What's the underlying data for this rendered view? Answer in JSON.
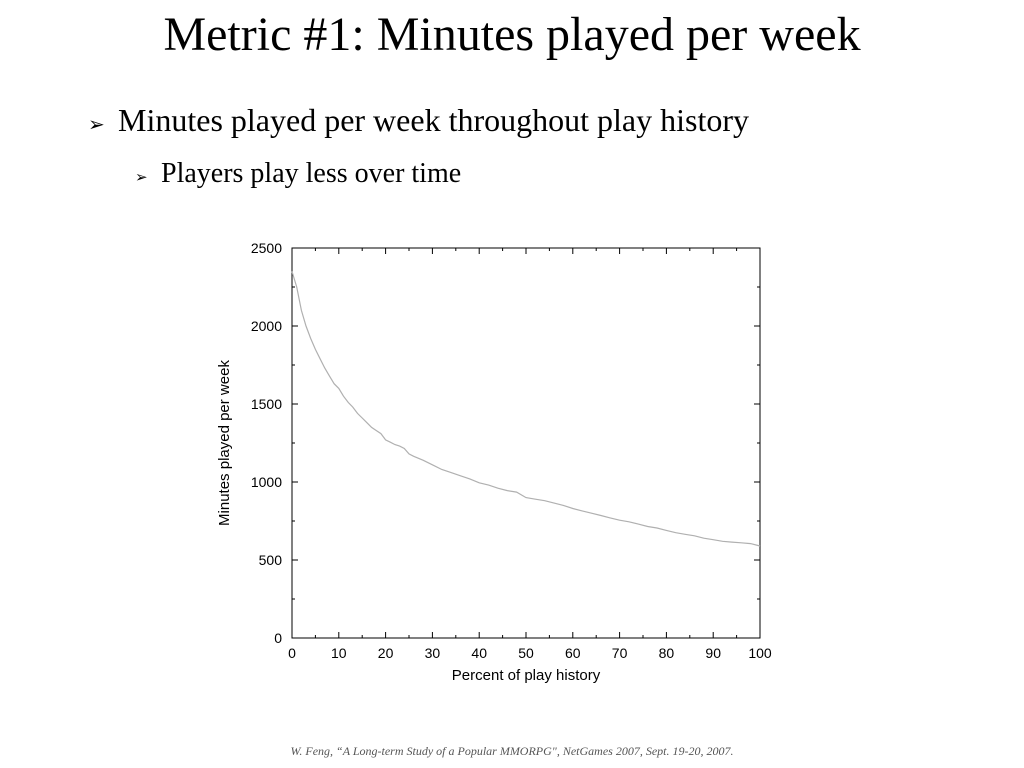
{
  "slide": {
    "title": "Metric #1: Minutes played per week",
    "bullets": [
      {
        "text": "Minutes played per week throughout play history",
        "icon": "arrow-bullet-icon"
      },
      {
        "text": "Players play less over time",
        "icon": "arrow-bullet-icon"
      }
    ],
    "citation": "W. Feng, “A Long-term Study of a Popular MMORPG\", NetGames 2007, Sept. 19-20, 2007."
  },
  "chart_data": {
    "type": "line",
    "title": "",
    "xlabel": "Percent of play history",
    "ylabel": "Minutes played per week",
    "xlim": [
      0,
      100
    ],
    "ylim": [
      0,
      2500
    ],
    "xticks": [
      0,
      10,
      20,
      30,
      40,
      50,
      60,
      70,
      80,
      90,
      100
    ],
    "yticks": [
      0,
      500,
      1000,
      1500,
      2000,
      2500
    ],
    "grid": false,
    "line_color": "#b0b0b0",
    "series": [
      {
        "x": [
          0,
          1,
          2,
          3,
          4,
          5,
          6,
          7,
          8,
          9,
          10,
          11,
          12,
          13,
          14,
          15,
          16,
          17,
          18,
          19,
          20,
          21,
          22,
          23,
          24,
          25,
          26,
          28,
          30,
          32,
          34,
          36,
          38,
          40,
          42,
          44,
          46,
          48,
          50,
          52,
          54,
          56,
          58,
          60,
          62,
          64,
          66,
          68,
          70,
          72,
          74,
          76,
          78,
          80,
          82,
          84,
          86,
          88,
          90,
          92,
          94,
          96,
          98,
          100
        ],
        "y": [
          2350,
          2250,
          2100,
          2000,
          1920,
          1850,
          1790,
          1730,
          1680,
          1630,
          1600,
          1550,
          1510,
          1480,
          1440,
          1410,
          1380,
          1350,
          1330,
          1310,
          1270,
          1255,
          1240,
          1230,
          1215,
          1180,
          1165,
          1140,
          1110,
          1080,
          1060,
          1040,
          1020,
          995,
          980,
          960,
          945,
          935,
          900,
          890,
          880,
          865,
          850,
          830,
          815,
          800,
          785,
          770,
          755,
          745,
          730,
          715,
          705,
          690,
          675,
          665,
          655,
          640,
          630,
          620,
          615,
          610,
          605,
          590
        ]
      }
    ]
  }
}
